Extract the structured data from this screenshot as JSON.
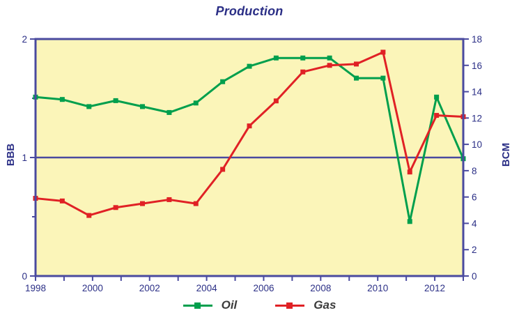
{
  "colors": {
    "axis_line": "#4A4A9F",
    "text_navy": "#2B2F86",
    "legend_text": "#3C3C3C",
    "plot_background": "#FBF5B9",
    "oil_green": "#009F4D",
    "gas_red": "#E02125",
    "page_background": "#FFFFFF"
  },
  "chart_data": {
    "type": "line",
    "title": "Production",
    "plot_bg": "#FBF5B9",
    "x_axis": {
      "tick_years": [
        1998,
        1999,
        2000,
        2001,
        2002,
        2003,
        2004,
        2005,
        2006,
        2007,
        2008,
        2009,
        2010,
        2011,
        2012,
        2013
      ],
      "labeled_years": [
        1998,
        2000,
        2002,
        2004,
        2006,
        2008,
        2010,
        2012
      ],
      "range": [
        1998,
        2013
      ]
    },
    "left_axis": {
      "label": "BBB",
      "range": [
        0,
        2
      ],
      "major_ticks": [
        0,
        1,
        2
      ],
      "minor_ticks": [
        0.5,
        1.5
      ]
    },
    "right_axis": {
      "label": "BCM",
      "range": [
        0,
        18
      ],
      "ticks": [
        0,
        2,
        4,
        6,
        8,
        10,
        12,
        14,
        16,
        18
      ]
    },
    "reference_line_left_value": 1,
    "points_even_spacing": {
      "from": 1998,
      "to": 2013,
      "count": 17
    },
    "legend_position": "bottom-center",
    "series": [
      {
        "name": "Oil",
        "axis": "left",
        "unit": "BBB",
        "color": "#009F4D",
        "values": [
          1.51,
          1.49,
          1.43,
          1.48,
          1.43,
          1.38,
          1.46,
          1.64,
          1.77,
          1.84,
          1.84,
          1.84,
          1.67,
          1.67,
          0.46,
          1.51,
          0.99
        ]
      },
      {
        "name": "Gas",
        "axis": "right",
        "unit": "BCM",
        "color": "#E02125",
        "values": [
          5.9,
          5.7,
          4.6,
          5.2,
          5.5,
          5.8,
          5.5,
          8.1,
          11.4,
          13.3,
          15.5,
          16.0,
          16.1,
          17.0,
          7.9,
          12.2,
          12.1
        ]
      }
    ]
  }
}
